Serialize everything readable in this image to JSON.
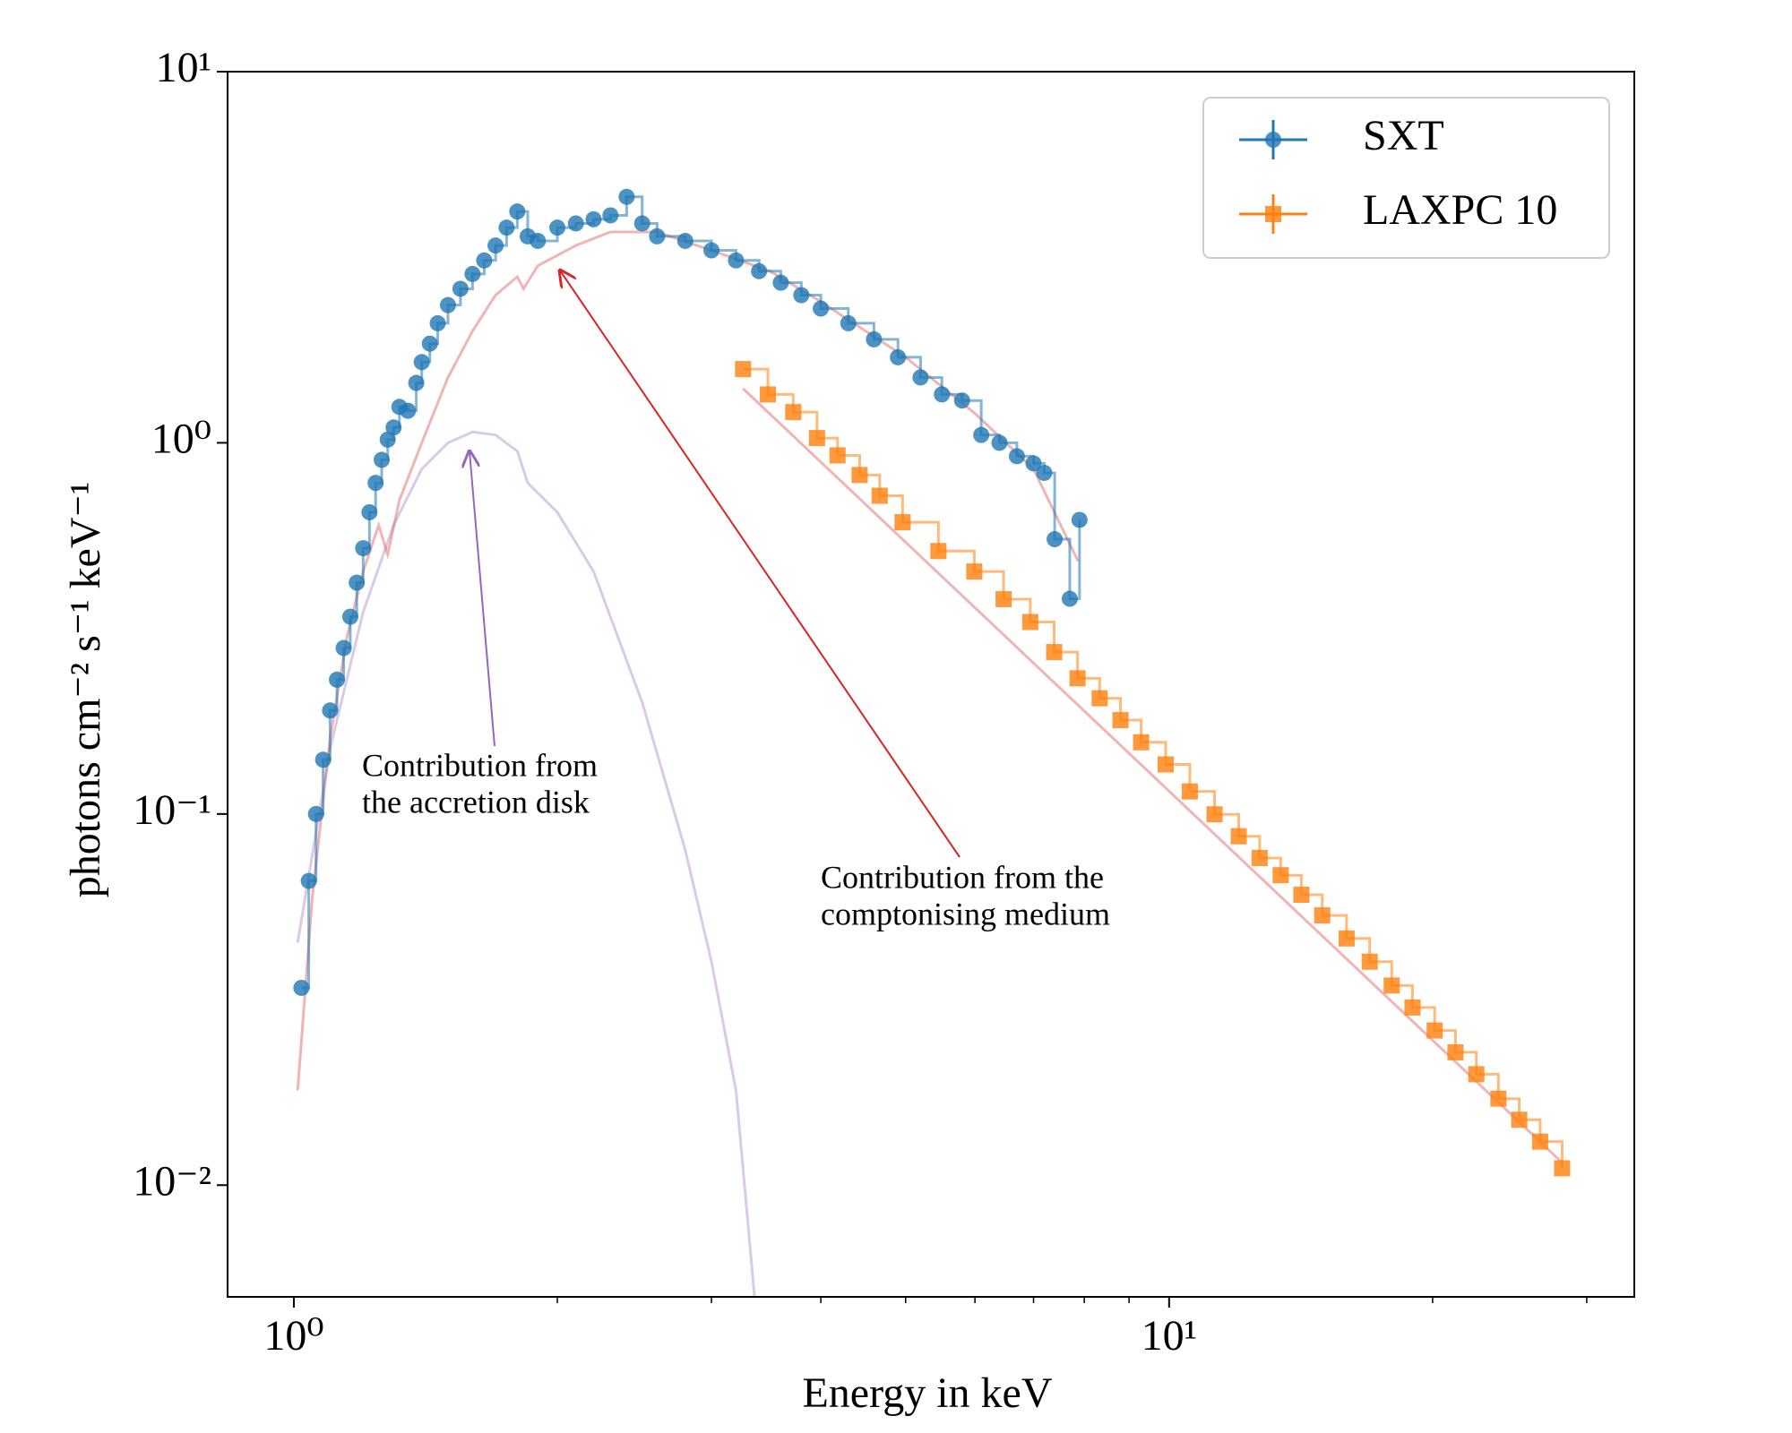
{
  "chart_data": {
    "type": "scatter",
    "x_label": "Energy in keV",
    "y_label": "photons cm⁻² s⁻¹ keV⁻¹",
    "log_x": true,
    "log_y": true,
    "xlim": [
      0.84,
      34
    ],
    "ylim": [
      0.005,
      10
    ],
    "xticks": [
      {
        "value": 1,
        "label": "10⁰"
      },
      {
        "value": 10,
        "label": "10¹"
      }
    ],
    "x_minor_ticks": [
      2,
      3,
      4,
      5,
      6,
      7,
      8,
      9,
      20,
      30
    ],
    "yticks": [
      {
        "value": 0.01,
        "label": "10⁻²"
      },
      {
        "value": 0.1,
        "label": "10⁻¹"
      },
      {
        "value": 1,
        "label": "10⁰"
      },
      {
        "value": 10,
        "label": "10¹"
      }
    ],
    "legend": "upper right",
    "series": [
      {
        "name": "SXT",
        "color": "#1f77b4",
        "marker": "circle",
        "step": true,
        "x": [
          1.02,
          1.04,
          1.06,
          1.08,
          1.1,
          1.12,
          1.14,
          1.16,
          1.18,
          1.2,
          1.22,
          1.24,
          1.26,
          1.28,
          1.3,
          1.32,
          1.35,
          1.38,
          1.4,
          1.43,
          1.46,
          1.5,
          1.55,
          1.6,
          1.65,
          1.7,
          1.75,
          1.8,
          1.85,
          1.9,
          2.0,
          2.1,
          2.2,
          2.3,
          2.4,
          2.5,
          2.6,
          2.8,
          3.0,
          3.2,
          3.4,
          3.6,
          3.8,
          4.0,
          4.3,
          4.6,
          4.9,
          5.2,
          5.5,
          5.8,
          6.1,
          6.4,
          6.7,
          7.0,
          7.2,
          7.4,
          7.7,
          7.9
        ],
        "values": [
          0.034,
          0.066,
          0.1,
          0.14,
          0.19,
          0.23,
          0.28,
          0.34,
          0.42,
          0.52,
          0.65,
          0.78,
          0.9,
          1.02,
          1.1,
          1.25,
          1.22,
          1.45,
          1.65,
          1.85,
          2.1,
          2.35,
          2.6,
          2.85,
          3.1,
          3.4,
          3.8,
          4.2,
          3.6,
          3.5,
          3.8,
          3.9,
          4.0,
          4.1,
          4.6,
          3.9,
          3.6,
          3.5,
          3.3,
          3.1,
          2.9,
          2.7,
          2.5,
          2.3,
          2.1,
          1.9,
          1.7,
          1.5,
          1.35,
          1.3,
          1.05,
          1.0,
          0.92,
          0.88,
          0.83,
          0.55,
          0.38,
          0.62
        ]
      },
      {
        "name": "LAXPC 10",
        "color": "#ff7f0e",
        "marker": "square",
        "step": true,
        "x": [
          3.26,
          3.48,
          3.72,
          3.96,
          4.18,
          4.43,
          4.67,
          4.96,
          5.45,
          5.99,
          6.47,
          6.94,
          7.39,
          7.86,
          8.33,
          8.8,
          9.29,
          9.91,
          10.56,
          11.27,
          12.01,
          12.69,
          13.41,
          14.16,
          14.96,
          15.95,
          16.95,
          17.96,
          18.97,
          20.11,
          21.24,
          22.44,
          23.78,
          25.12,
          26.54,
          28.12
        ],
        "values": [
          1.58,
          1.35,
          1.21,
          1.03,
          0.925,
          0.819,
          0.72,
          0.611,
          0.511,
          0.45,
          0.379,
          0.329,
          0.273,
          0.232,
          0.205,
          0.179,
          0.156,
          0.136,
          0.115,
          0.0998,
          0.0871,
          0.0761,
          0.0684,
          0.0606,
          0.0533,
          0.0462,
          0.04,
          0.0345,
          0.0301,
          0.0261,
          0.0228,
          0.0199,
          0.0171,
          0.015,
          0.0131,
          0.0111
        ]
      }
    ],
    "lines": [
      {
        "color": "#d62728",
        "x": [
          1.01,
          1.05,
          1.1,
          1.15,
          1.2,
          1.25,
          1.28,
          1.32,
          1.4,
          1.5,
          1.6,
          1.7,
          1.8,
          1.83,
          1.9,
          2.1,
          2.3,
          2.6,
          3.0,
          3.5,
          4.0,
          5.0,
          6.0,
          7.0,
          7.87,
          null,
          3.26,
          28.12
        ],
        "values": [
          0.018,
          0.06,
          0.16,
          0.3,
          0.45,
          0.6,
          0.5,
          0.7,
          1.0,
          1.5,
          2.0,
          2.5,
          2.8,
          2.6,
          3.0,
          3.4,
          3.7,
          3.7,
          3.3,
          2.9,
          2.4,
          1.7,
          1.2,
          0.85,
          0.48,
          null,
          1.4,
          0.0115
        ]
      },
      {
        "color": "#9467bd",
        "x": [
          1.01,
          1.1,
          1.2,
          1.3,
          1.4,
          1.5,
          1.6,
          1.7,
          1.8,
          1.85,
          2.0,
          2.2,
          2.5,
          2.8,
          3.0,
          3.2,
          3.36
        ],
        "values": [
          0.045,
          0.15,
          0.35,
          0.6,
          0.85,
          1.0,
          1.07,
          1.05,
          0.95,
          0.78,
          0.65,
          0.45,
          0.2,
          0.08,
          0.04,
          0.018,
          0.005
        ]
      }
    ],
    "annotations": [
      {
        "color": "#9467bd",
        "text": [
          "Contribution from",
          "the accretion disk"
        ]
      },
      {
        "color": "#d62728",
        "text": [
          "Contribution from the",
          "comptonising medium"
        ]
      }
    ]
  }
}
